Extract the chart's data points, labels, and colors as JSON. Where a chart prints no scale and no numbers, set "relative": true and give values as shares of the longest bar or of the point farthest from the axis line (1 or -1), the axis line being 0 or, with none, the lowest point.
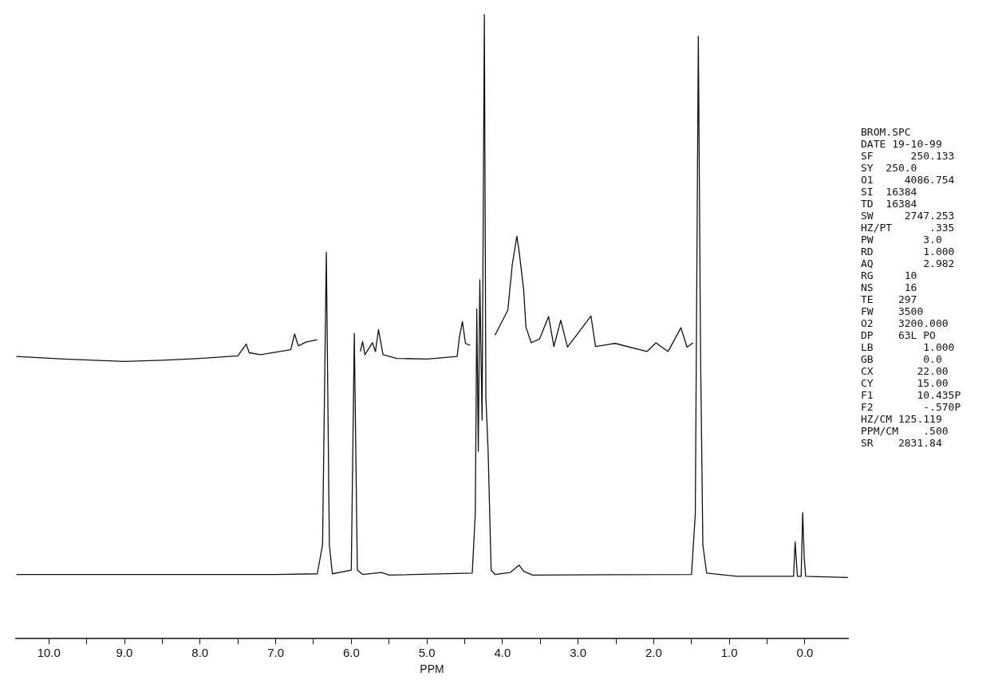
{
  "chart_data": {
    "type": "line",
    "relative": true,
    "xlabel": "PPM",
    "xlim": [
      10.435,
      -0.57
    ],
    "xticks": [
      {
        "value": 10,
        "label": "10.0"
      },
      {
        "value": 9.5,
        "label": null
      },
      {
        "value": 9,
        "label": "9.0"
      },
      {
        "value": 8.5,
        "label": null
      },
      {
        "value": 8,
        "label": "8.0"
      },
      {
        "value": 7.5,
        "label": null
      },
      {
        "value": 7,
        "label": "7.0"
      },
      {
        "value": 6.5,
        "label": null
      },
      {
        "value": 6,
        "label": "6.0"
      },
      {
        "value": 5.5,
        "label": null
      },
      {
        "value": 5,
        "label": "5.0"
      },
      {
        "value": 4.5,
        "label": null
      },
      {
        "value": 4,
        "label": "4.0"
      },
      {
        "value": 3.5,
        "label": null
      },
      {
        "value": 3,
        "label": "3.0"
      },
      {
        "value": 2.5,
        "label": null
      },
      {
        "value": 2,
        "label": "2.0"
      },
      {
        "value": 1.5,
        "label": null
      },
      {
        "value": 1,
        "label": "1.0"
      },
      {
        "value": 0.5,
        "label": null
      },
      {
        "value": 0,
        "label": "0.0"
      }
    ],
    "grid": false,
    "legend": false,
    "series": [
      {
        "color": "#111111",
        "x": [
          10.43,
          7,
          6.45,
          6.38,
          6.33,
          6.29,
          6.25,
          6,
          5.96,
          5.92,
          5.85,
          5.6,
          5.5,
          4.4,
          4.36,
          4.34,
          4.32,
          4.3,
          4.27,
          4.24,
          4.22,
          4.19,
          4.15,
          4.1,
          3.9,
          3.82,
          3.78,
          3.72,
          3.6,
          1.5,
          1.45,
          1.41,
          1.38,
          1.35,
          1.3,
          0.9,
          0.15,
          0.13,
          0.1,
          0.05,
          0.03,
          0.01,
          -0.01,
          -0.57
        ],
        "values": [
          0.103,
          0.103,
          0.104,
          0.15,
          0.619,
          0.15,
          0.104,
          0.11,
          0.489,
          0.11,
          0.103,
          0.106,
          0.102,
          0.105,
          0.2,
          0.528,
          0.3,
          0.575,
          0.35,
          1.0,
          0.387,
          0.3,
          0.11,
          0.103,
          0.106,
          0.114,
          0.118,
          0.108,
          0.102,
          0.103,
          0.2,
          0.965,
          0.45,
          0.15,
          0.105,
          0.1,
          0.1,
          0.155,
          0.1,
          0.1,
          0.202,
          0.13,
          0.1,
          0.098
        ]
      },
      {
        "color": "#111111",
        "x": [
          10.43,
          9.8,
          9,
          8.5,
          8,
          7.5,
          7.39,
          7.35,
          7.2,
          6.8,
          6.75,
          6.7,
          6.6,
          6.45,
          6.2,
          5.88,
          5.85,
          5.82,
          5.72,
          5.68,
          5.64,
          5.58,
          5.4,
          5,
          4.6,
          4.57,
          4.53,
          4.49,
          4.43,
          4.2,
          4.1,
          3.93,
          3.87,
          3.81,
          3.78,
          3.72,
          3.69,
          3.62,
          3.51,
          3.39,
          3.32,
          3.23,
          3.14,
          2.83,
          2.77,
          2.51,
          2.09,
          1.97,
          1.81,
          1.64,
          1.56,
          1.48
        ],
        "values": [
          0.452,
          0.448,
          0.444,
          0.446,
          0.449,
          0.453,
          0.472,
          0.458,
          0.455,
          0.463,
          0.488,
          0.469,
          0.475,
          0.479,
          null,
          0.46,
          0.476,
          0.455,
          0.474,
          0.46,
          0.495,
          0.455,
          0.449,
          0.448,
          0.452,
          0.483,
          0.508,
          0.473,
          0.47,
          null,
          0.486,
          0.526,
          0.6,
          0.645,
          0.62,
          0.559,
          0.499,
          0.474,
          0.48,
          0.516,
          0.468,
          0.51,
          0.467,
          0.517,
          0.468,
          0.473,
          0.46,
          0.474,
          0.46,
          0.498,
          0.467,
          0.474
        ]
      }
    ],
    "annotations": [
      "BROM.SPC",
      "DATE 19-10-99",
      "SF      250.133",
      "SY  250.0",
      "O1     4086.754",
      "SI  16384",
      "TD  16384",
      "SW     2747.253",
      "HZ/PT      .335",
      "PW        3.0",
      "RD        1.000",
      "AQ        2.982",
      "RG     10",
      "NS     16",
      "TE    297",
      "FW    3500",
      "O2    3200.000",
      "DP    63L PO",
      "LB        1.000",
      "GB        0.0",
      "CX       22.00",
      "CY       15.00",
      "F1       10.435P",
      "F2        -.570P",
      "HZ/CM 125.119",
      "PPM/CM    .500",
      "SR    2831.84"
    ]
  }
}
